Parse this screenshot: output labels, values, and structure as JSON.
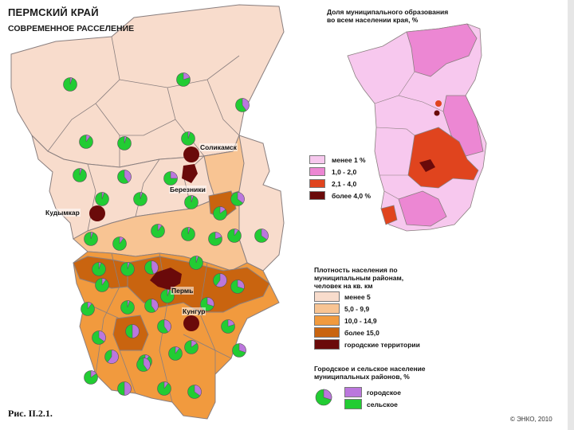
{
  "map": {
    "title": "ПЕРМСКИЙ КРАЙ",
    "subtitle": "СОВРЕМЕННОЕ РАССЕЛЕНИЕ",
    "caption": "Рис. II.2.1.",
    "copyright": "© ЭНКО, 2010"
  },
  "cities": [
    {
      "name": "Соликамск",
      "id": "solikamsk"
    },
    {
      "name": "Березники",
      "id": "berezniki"
    },
    {
      "name": "Кудымкар",
      "id": "kudymkar"
    },
    {
      "name": "Пермь",
      "id": "perm"
    },
    {
      "name": "Кунгур",
      "id": "kungur"
    }
  ],
  "share_legend": {
    "title_line1": "Доля муниципального образования",
    "title_line2": "во всем населении края, %",
    "items": [
      {
        "label": "менее 1 %",
        "color": "#f7c8ee"
      },
      {
        "label": "1,0 - 2,0",
        "color": "#ec87d3"
      },
      {
        "label": "2,1 - 4,0",
        "color": "#e0441e"
      },
      {
        "label": "более 4,0 %",
        "color": "#6a0a0a"
      }
    ]
  },
  "density_legend": {
    "title_line1": "Плотность населения по",
    "title_line2": "муниципальным районам,",
    "title_line3": "человек на кв. км",
    "items": [
      {
        "label": "менее 5",
        "color": "#f8dccc"
      },
      {
        "label": "5,0 - 9,9",
        "color": "#f8c493"
      },
      {
        "label": "10,0 - 14,9",
        "color": "#f19a3e"
      },
      {
        "label": "более 15,0",
        "color": "#c9640f"
      },
      {
        "label": "городские территории",
        "color": "#6a0a0a"
      }
    ]
  },
  "population_legend": {
    "title_line1": "Городское и сельское население",
    "title_line2": "муниципальных районов, %",
    "items": [
      {
        "label": "городское",
        "color": "#bb77dd"
      },
      {
        "label": "сельское",
        "color": "#22cc33"
      }
    ]
  },
  "pies": [
    {
      "urban": 0.05
    },
    {
      "urban": 0.2
    },
    {
      "urban": 0.4
    },
    {
      "urban": 0.1
    },
    {
      "urban": 0.05
    },
    {
      "urban": 0.05
    },
    {
      "urban": 0.25
    },
    {
      "urban": 0.05
    },
    {
      "urban": 0.4
    },
    {
      "urban": 0.05
    },
    {
      "urban": 0.05
    },
    {
      "urban": 0.05
    },
    {
      "urban": 0.15
    },
    {
      "urban": 0.35
    },
    {
      "urban": 0.05
    },
    {
      "urban": 0.1
    },
    {
      "urban": 0.05
    },
    {
      "urban": 0.1
    },
    {
      "urban": 0.35
    },
    {
      "urban": 0.05
    },
    {
      "urban": 0.05
    },
    {
      "urban": 0.45
    },
    {
      "urban": 0.1
    },
    {
      "urban": 0.05
    },
    {
      "urban": 0.3
    },
    {
      "urban": 0.1
    },
    {
      "urban": 0.05
    },
    {
      "urban": 0.4
    },
    {
      "urban": 0.35
    },
    {
      "urban": 0.5
    },
    {
      "urban": 0.4
    },
    {
      "urban": 0.3
    },
    {
      "urban": 0.2
    },
    {
      "urban": 0.6
    },
    {
      "urban": 0.1
    },
    {
      "urban": 0.15
    },
    {
      "urban": 0.15
    },
    {
      "urban": 0.5
    },
    {
      "urban": 0.1
    },
    {
      "urban": 0.35
    },
    {
      "urban": 0.6
    },
    {
      "urban": 0.1
    },
    {
      "urban": 0.3
    },
    {
      "urban": 0.1
    },
    {
      "urban": 0.2
    },
    {
      "urban": 0.05
    },
    {
      "urban": 0.4
    }
  ]
}
